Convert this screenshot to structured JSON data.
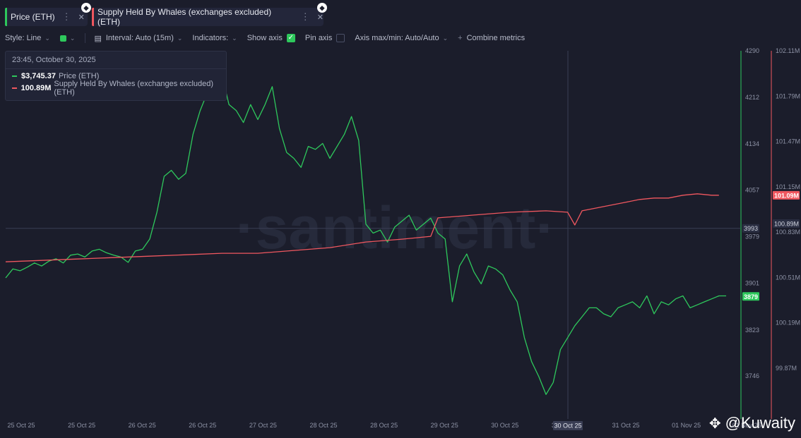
{
  "tabs": [
    {
      "label": "Price (ETH)",
      "color": "#2ec85c"
    },
    {
      "label": "Supply Held By Whales (exchanges excluded) (ETH)",
      "color": "#f0575f"
    }
  ],
  "toolbar": {
    "style": "Style: Line",
    "interval": "Interval: Auto (15m)",
    "indicators": "Indicators:",
    "show_axis": "Show axis",
    "pin_axis": "Pin axis",
    "axis_maxmin": "Axis max/min: Auto/Auto",
    "combine": "Combine metrics"
  },
  "tooltip": {
    "date": "23:45, October 30, 2025",
    "rows": [
      {
        "value": "$3,745.37",
        "name": "Price (ETH)"
      },
      {
        "value": "100.89M",
        "name": "Supply Held By Whales (exchanges excluded) (ETH)"
      }
    ]
  },
  "watermark": "·santiment·",
  "brand": {
    "text": "@Kuwaity",
    "icon": "binance-icon"
  },
  "chart_data": {
    "type": "line",
    "x_ticks": [
      "25 Oct 25",
      "25 Oct 25",
      "26 Oct 25",
      "26 Oct 25",
      "27 Oct 25",
      "28 Oct 25",
      "28 Oct 25",
      "29 Oct 25",
      "30 Oct 25",
      "30 Oct 25",
      "31 Oct 25",
      "01 Nov 25",
      "01 Nov 25"
    ],
    "x_highlight": "30 Oct 25",
    "x_range": [
      0,
      100
    ],
    "series": [
      {
        "name": "Price (ETH)",
        "color": "#2ec85c",
        "axis": "left",
        "ylim": [
          3700,
          4290
        ],
        "ticks": [
          "4290",
          "4212",
          "4134",
          "4057",
          "3979",
          "3901",
          "3823",
          "3746"
        ],
        "current": "3879",
        "crosshair": "3993",
        "x": [
          0,
          1,
          2,
          3,
          4,
          5,
          6,
          7,
          8,
          9,
          10,
          11,
          12,
          13,
          14,
          15,
          16,
          17,
          18,
          19,
          20,
          21,
          22,
          23,
          24,
          25,
          26,
          27,
          28,
          29,
          30,
          31,
          32,
          33,
          34,
          35,
          36,
          37,
          38,
          39,
          40,
          41,
          42,
          43,
          44,
          45,
          46,
          47,
          48,
          49,
          50,
          51,
          52,
          53,
          54,
          55,
          56,
          57,
          58,
          59,
          60,
          61,
          62,
          63,
          64,
          65,
          66,
          67,
          68,
          69,
          70,
          71,
          72,
          73,
          74,
          75,
          76,
          77,
          78,
          79,
          80,
          81,
          82,
          83,
          84,
          85,
          86,
          87,
          88,
          89,
          90,
          91,
          92,
          93,
          94,
          95,
          96,
          97,
          98,
          99,
          100
        ],
        "y": [
          3910,
          3925,
          3922,
          3928,
          3935,
          3930,
          3938,
          3942,
          3935,
          3948,
          3950,
          3945,
          3955,
          3958,
          3952,
          3948,
          3945,
          3936,
          3955,
          3958,
          3975,
          4020,
          4080,
          4090,
          4075,
          4085,
          4150,
          4190,
          4220,
          4240,
          4250,
          4200,
          4190,
          4170,
          4200,
          4175,
          4200,
          4230,
          4160,
          4120,
          4110,
          4095,
          4130,
          4125,
          4135,
          4110,
          4130,
          4150,
          4180,
          4140,
          4000,
          3985,
          3990,
          3970,
          3995,
          4005,
          4015,
          3990,
          4000,
          4010,
          3985,
          3975,
          3870,
          3930,
          3950,
          3920,
          3900,
          3930,
          3925,
          3915,
          3890,
          3870,
          3810,
          3770,
          3745,
          3715,
          3735,
          3790,
          3810,
          3830,
          3845,
          3860,
          3860,
          3850,
          3845,
          3860,
          3865,
          3870,
          3860,
          3880,
          3850,
          3870,
          3865,
          3875,
          3880,
          3860,
          3865,
          3870,
          3875,
          3880,
          3880
        ]
      },
      {
        "name": "Supply Held By Whales (exchanges excluded) (ETH)",
        "color": "#f0575f",
        "axis": "right",
        "ylim": [
          99.62,
          102.11
        ],
        "ticks": [
          "102.11M",
          "101.79M",
          "101.47M",
          "101.15M",
          "100.83M",
          "100.51M",
          "100.19M",
          "99.87M"
        ],
        "current": "101.09M",
        "crosshair": "100.89M",
        "x": [
          0,
          5,
          10,
          15,
          20,
          25,
          30,
          35,
          40,
          45,
          50,
          55,
          59,
          60,
          65,
          70,
          75,
          78,
          79,
          80,
          82,
          84,
          86,
          88,
          90,
          92,
          94,
          96,
          98,
          99
        ],
        "y": [
          100.62,
          100.63,
          100.64,
          100.65,
          100.66,
          100.67,
          100.68,
          100.68,
          100.7,
          100.72,
          100.76,
          100.78,
          100.8,
          100.93,
          100.95,
          100.97,
          100.98,
          100.97,
          100.88,
          100.98,
          101.0,
          101.02,
          101.04,
          101.06,
          101.07,
          101.07,
          101.09,
          101.1,
          101.09,
          101.09
        ]
      }
    ]
  }
}
